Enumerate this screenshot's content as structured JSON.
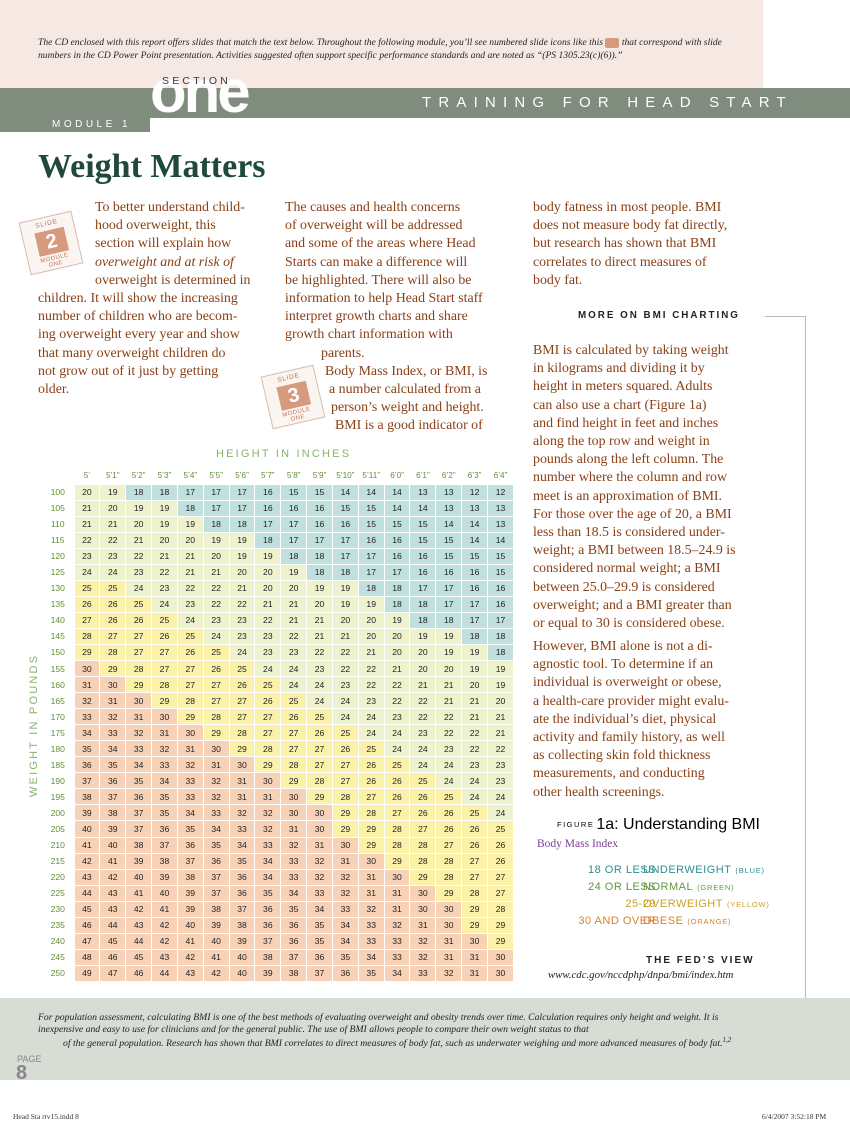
{
  "header": {
    "note_a": "The CD enclosed with this report offers slides that match the text below. Throughout the following module, you’ll see numbered slide icons like this",
    "note_b": "that correspond with slide numbers in the CD Power Point presentation. Activities suggested often support specific performance standards and are noted as “(PS 1305.23(c)(6)).”",
    "section_label": "SECTION",
    "section_word": "one",
    "module_label": "MODULE 1",
    "banner": "TRAINING FOR HEAD START"
  },
  "title": "Weight Matters",
  "slide_badges": [
    {
      "label": "SLIDE",
      "number": "2",
      "module_a": "MODULE",
      "module_b": "ONE"
    },
    {
      "label": "SLIDE",
      "number": "3",
      "module_a": "MODULE",
      "module_b": "ONE"
    }
  ],
  "body": {
    "col1": [
      "To better understand child-",
      "hood overweight, this",
      "section will explain how",
      "overweight and at risk of",
      "overweight is determined in",
      "children. It will show the increasing",
      "number of children who are becom-",
      "ing overweight every year and show",
      "that many overweight children do",
      "not grow out of it just by getting",
      "older."
    ],
    "col2": [
      "The causes and health concerns",
      "of overweight will be addressed",
      "and some of the areas where Head",
      "Starts can make a difference will",
      "be highlighted. There will also be",
      "information to help Head Start staff",
      "interpret growth charts and share",
      "growth chart information with",
      "parents.",
      "Body Mass Index, or BMI, is",
      "a number calculated from a",
      "person’s weight and height.",
      "BMI is a good indicator of"
    ],
    "col3_top": [
      "body fatness in most people. BMI",
      "does not measure body fat directly,",
      "but research has shown that BMI",
      "correlates to direct measures of",
      "body fat."
    ]
  },
  "sidebar": {
    "heading": "MORE ON BMI CHARTING",
    "p1": [
      "BMI is calculated by taking weight",
      "in kilograms and dividing it by",
      "height in meters squared. Adults",
      "can also use a chart (Figure 1a)",
      "and find height in feet and inches",
      "along the top row and weight in",
      "pounds along the left column. The",
      "number where the column and row",
      "meet is an approximation of BMI.",
      "For those over the age of 20, a BMI",
      "less than 18.5 is considered under-",
      "weight; a BMI between 18.5–24.9 is",
      "considered normal weight; a BMI",
      "between 25.0–29.9 is considered",
      "overweight; and a BMI greater than",
      "or equal to 30 is considered obese."
    ],
    "p2": [
      "However, BMI alone is not a di-",
      "agnostic tool. To determine if an",
      "individual is overweight or obese,",
      "a health-care provider might evalu-",
      "ate the individual’s diet, physical",
      "activity and family history, as well",
      "as collecting skin fold thickness",
      "measurements, and conducting",
      "other health screenings."
    ],
    "figure_prefix": "FIGURE",
    "figure_title": "1a: Understanding BMI",
    "figure_sub": "Body Mass Index",
    "legend": [
      {
        "range": "18 OR LESS",
        "category": "UNDERWEIGHT",
        "color_name": "(BLUE)",
        "color": "#2e8f90"
      },
      {
        "range": "24 OR LESS",
        "category": "NORMAL",
        "color_name": "(GREEN)",
        "color": "#5f9a3c"
      },
      {
        "range": "25-29",
        "category": "OVERWEIGHT",
        "color_name": "(YELLOW)",
        "color": "#c9a227"
      },
      {
        "range": "30 AND OVER",
        "category": "OBESE",
        "color_name": "(ORANGE)",
        "color": "#d9822b"
      }
    ],
    "feds_heading": "THE FED’S VIEW",
    "feds_url": "www.cdc.gov/nccdphp/dnpa/bmi/index.htm"
  },
  "bmi_table": {
    "height_label": "HEIGHT IN INCHES",
    "weight_label": "WEIGHT IN POUNDS",
    "heights": [
      "5’",
      "5’1”",
      "5’2”",
      "5’3”",
      "5’4”",
      "5’5”",
      "5’6”",
      "5’7”",
      "5’8”",
      "5’9”",
      "5’10”",
      "5’11”",
      "6’0”",
      "6’1”",
      "6’2”",
      "6’3”",
      "6’4”"
    ],
    "weights": [
      100,
      105,
      110,
      115,
      120,
      125,
      130,
      135,
      140,
      145,
      150,
      155,
      160,
      165,
      170,
      175,
      180,
      185,
      190,
      195,
      200,
      205,
      210,
      215,
      220,
      225,
      230,
      235,
      240,
      245,
      250
    ],
    "rows": [
      [
        20,
        19,
        18,
        18,
        17,
        17,
        17,
        16,
        15,
        15,
        14,
        14,
        14,
        13,
        13,
        12,
        12
      ],
      [
        21,
        20,
        19,
        19,
        18,
        17,
        17,
        16,
        16,
        16,
        15,
        15,
        14,
        14,
        13,
        13,
        13
      ],
      [
        21,
        21,
        20,
        19,
        19,
        18,
        18,
        17,
        17,
        16,
        16,
        15,
        15,
        15,
        14,
        14,
        13
      ],
      [
        22,
        22,
        21,
        20,
        20,
        19,
        19,
        18,
        17,
        17,
        17,
        16,
        16,
        15,
        15,
        14,
        14
      ],
      [
        23,
        23,
        22,
        21,
        21,
        20,
        19,
        19,
        18,
        18,
        17,
        17,
        16,
        16,
        15,
        15,
        15
      ],
      [
        24,
        24,
        23,
        22,
        21,
        21,
        20,
        20,
        19,
        18,
        18,
        17,
        17,
        16,
        16,
        16,
        15
      ],
      [
        25,
        25,
        24,
        23,
        22,
        22,
        21,
        20,
        20,
        19,
        19,
        18,
        18,
        17,
        17,
        16,
        16
      ],
      [
        26,
        26,
        25,
        24,
        23,
        22,
        22,
        21,
        21,
        20,
        19,
        19,
        18,
        18,
        17,
        17,
        16
      ],
      [
        27,
        26,
        26,
        25,
        24,
        23,
        23,
        22,
        21,
        21,
        20,
        20,
        19,
        18,
        18,
        17,
        17
      ],
      [
        28,
        27,
        27,
        26,
        25,
        24,
        23,
        23,
        22,
        21,
        21,
        20,
        20,
        19,
        19,
        18,
        18
      ],
      [
        29,
        28,
        27,
        27,
        26,
        25,
        24,
        23,
        23,
        22,
        22,
        21,
        20,
        20,
        19,
        19,
        18
      ],
      [
        30,
        29,
        28,
        27,
        27,
        26,
        25,
        24,
        24,
        23,
        22,
        22,
        21,
        20,
        20,
        19,
        19
      ],
      [
        31,
        30,
        29,
        28,
        27,
        27,
        26,
        25,
        24,
        24,
        23,
        22,
        22,
        21,
        21,
        20,
        19
      ],
      [
        32,
        31,
        30,
        29,
        28,
        27,
        27,
        26,
        25,
        24,
        24,
        23,
        22,
        22,
        21,
        21,
        20
      ],
      [
        33,
        32,
        31,
        30,
        29,
        28,
        27,
        27,
        26,
        25,
        24,
        24,
        23,
        22,
        22,
        21,
        21
      ],
      [
        34,
        33,
        32,
        31,
        30,
        29,
        28,
        27,
        27,
        26,
        25,
        24,
        24,
        23,
        22,
        22,
        21
      ],
      [
        35,
        34,
        33,
        32,
        31,
        30,
        29,
        28,
        27,
        27,
        26,
        25,
        24,
        24,
        23,
        22,
        22
      ],
      [
        36,
        35,
        34,
        33,
        32,
        31,
        30,
        29,
        28,
        27,
        27,
        26,
        25,
        24,
        24,
        23,
        23
      ],
      [
        37,
        36,
        35,
        34,
        33,
        32,
        31,
        30,
        29,
        28,
        27,
        26,
        26,
        25,
        24,
        24,
        23
      ],
      [
        38,
        37,
        36,
        35,
        33,
        32,
        31,
        31,
        30,
        29,
        28,
        27,
        26,
        26,
        25,
        24,
        24
      ],
      [
        39,
        38,
        37,
        35,
        34,
        33,
        32,
        32,
        30,
        30,
        29,
        28,
        27,
        26,
        26,
        25,
        24
      ],
      [
        40,
        39,
        37,
        36,
        35,
        34,
        33,
        32,
        31,
        30,
        29,
        29,
        28,
        27,
        26,
        26,
        25
      ],
      [
        41,
        40,
        38,
        37,
        36,
        35,
        34,
        33,
        32,
        31,
        30,
        29,
        28,
        28,
        27,
        26,
        26
      ],
      [
        42,
        41,
        39,
        38,
        37,
        36,
        35,
        34,
        33,
        32,
        31,
        30,
        29,
        28,
        28,
        27,
        26
      ],
      [
        43,
        42,
        40,
        39,
        38,
        37,
        36,
        34,
        33,
        32,
        32,
        31,
        30,
        29,
        28,
        27,
        27
      ],
      [
        44,
        43,
        41,
        40,
        39,
        37,
        36,
        35,
        34,
        33,
        32,
        31,
        31,
        30,
        29,
        28,
        27
      ],
      [
        45,
        43,
        42,
        41,
        39,
        38,
        37,
        36,
        35,
        34,
        33,
        32,
        31,
        30,
        30,
        29,
        28
      ],
      [
        46,
        44,
        43,
        42,
        40,
        39,
        38,
        36,
        36,
        35,
        34,
        33,
        32,
        31,
        30,
        29,
        29
      ],
      [
        47,
        45,
        44,
        42,
        41,
        40,
        39,
        37,
        36,
        35,
        34,
        33,
        33,
        32,
        31,
        30,
        29
      ],
      [
        48,
        46,
        45,
        43,
        42,
        41,
        40,
        38,
        37,
        36,
        35,
        34,
        33,
        32,
        31,
        31,
        30
      ],
      [
        49,
        47,
        46,
        44,
        43,
        42,
        40,
        39,
        38,
        37,
        36,
        35,
        34,
        33,
        32,
        31,
        30
      ]
    ],
    "cell_colors": {
      "underweight": "#bfe0dc",
      "normal": "#eef3ce",
      "overweight": "#fbf1a8",
      "obese": "#f8d2b6"
    }
  },
  "bottom": {
    "note_a": "For population assessment, calculating BMI is one of the best methods of evaluating overweight and obesity trends over time. Calculation requires only height and weight. It is inexpensive and easy to use for clinicians and for the general public. The use of BMI allows people to compare their own weight status to that",
    "note_b": "of the general population. Research has shown that BMI correlates to direct measures of body fat, such as underwater weighing and more advanced measures of body fat.",
    "note_sup": "1,2",
    "page_word": "PAGE",
    "page_number": "8"
  },
  "footer": {
    "left": "Head Sta rtv15.indd   8",
    "right": "6/4/2007   3:52:18 PM"
  }
}
